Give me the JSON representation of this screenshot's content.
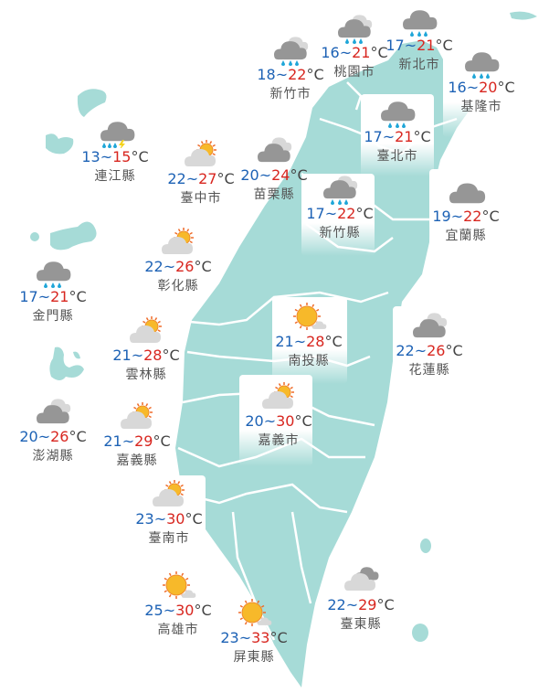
{
  "colors": {
    "land": "#a6dbd7",
    "border": "#ffffff",
    "low": "#1d62b5",
    "high": "#d8261f",
    "cloud": "#969696",
    "light_cloud": "#d8d8d8",
    "sun": "#f7b92a",
    "rain": "#1fa6d8"
  },
  "unit": "°C",
  "separator": "~",
  "cities": [
    {
      "name": "新竹市",
      "low": "18",
      "high": "22",
      "icon": "rain-cloudy"
    },
    {
      "name": "桃園市",
      "low": "16",
      "high": "21",
      "icon": "rain-cloudy"
    },
    {
      "name": "新北市",
      "low": "17",
      "high": "21",
      "icon": "rain"
    },
    {
      "name": "基隆市",
      "low": "16",
      "high": "20",
      "icon": "rain"
    },
    {
      "name": "臺北市",
      "low": "17",
      "high": "21",
      "icon": "rain"
    },
    {
      "name": "苗栗縣",
      "low": "20",
      "high": "24",
      "icon": "cloudy"
    },
    {
      "name": "新竹縣",
      "low": "17",
      "high": "22",
      "icon": "rain-cloudy"
    },
    {
      "name": "宜蘭縣",
      "low": "19",
      "high": "22",
      "icon": "overcast"
    },
    {
      "name": "連江縣",
      "low": "13",
      "high": "15",
      "icon": "thunder-rain"
    },
    {
      "name": "臺中市",
      "low": "22",
      "high": "27",
      "icon": "partly-cloudy"
    },
    {
      "name": "彰化縣",
      "low": "22",
      "high": "26",
      "icon": "partly-cloudy"
    },
    {
      "name": "金門縣",
      "low": "17",
      "high": "21",
      "icon": "rain"
    },
    {
      "name": "雲林縣",
      "low": "21",
      "high": "28",
      "icon": "partly-cloudy"
    },
    {
      "name": "南投縣",
      "low": "21",
      "high": "28",
      "icon": "sunny"
    },
    {
      "name": "花蓮縣",
      "low": "22",
      "high": "26",
      "icon": "cloudy"
    },
    {
      "name": "澎湖縣",
      "low": "20",
      "high": "26",
      "icon": "cloudy"
    },
    {
      "name": "嘉義縣",
      "low": "21",
      "high": "29",
      "icon": "partly-cloudy"
    },
    {
      "name": "嘉義市",
      "low": "20",
      "high": "30",
      "icon": "partly-cloudy"
    },
    {
      "name": "臺南市",
      "low": "23",
      "high": "30",
      "icon": "partly-cloudy"
    },
    {
      "name": "高雄市",
      "low": "25",
      "high": "30",
      "icon": "sunny"
    },
    {
      "name": "屏東縣",
      "low": "23",
      "high": "33",
      "icon": "sunny"
    },
    {
      "name": "臺東縣",
      "low": "22",
      "high": "29",
      "icon": "cloudy-light"
    }
  ]
}
